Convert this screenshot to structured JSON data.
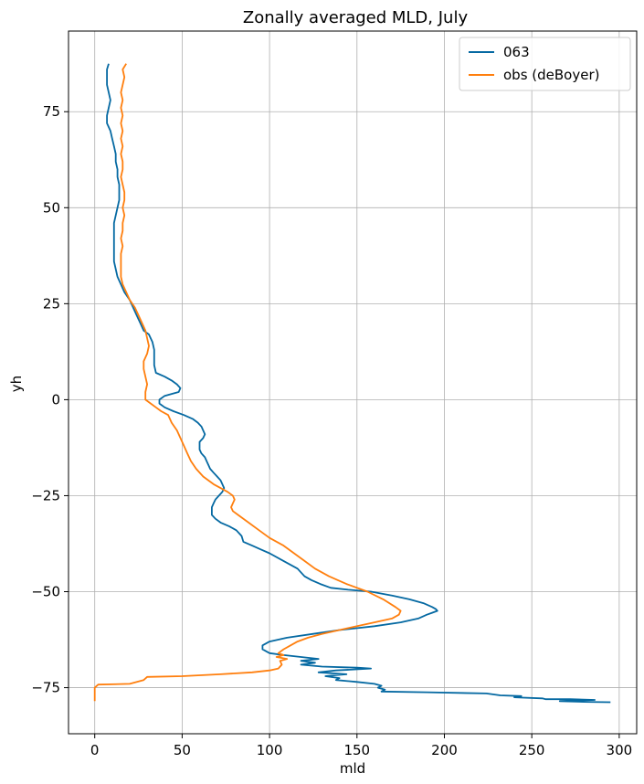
{
  "chart_data": {
    "type": "line",
    "title": "Zonally averaged MLD, July",
    "xlabel": "mld",
    "ylabel": "yh",
    "xlim": [
      -15,
      310
    ],
    "ylim": [
      -87,
      96
    ],
    "xticks": [
      0,
      50,
      100,
      150,
      200,
      250,
      300
    ],
    "yticks": [
      -75,
      -50,
      -25,
      0,
      25,
      50,
      75
    ],
    "grid": true,
    "legend_position": "top-right",
    "series": [
      {
        "name": "063",
        "color": "#0569a2",
        "points": [
          [
            8,
            87.5
          ],
          [
            7,
            86
          ],
          [
            7,
            84
          ],
          [
            7,
            82
          ],
          [
            8,
            80
          ],
          [
            9,
            78
          ],
          [
            8,
            76
          ],
          [
            7,
            74
          ],
          [
            7,
            72
          ],
          [
            9,
            70
          ],
          [
            10,
            68
          ],
          [
            11,
            66
          ],
          [
            12,
            64
          ],
          [
            12,
            62
          ],
          [
            13,
            60
          ],
          [
            13,
            58
          ],
          [
            14,
            56
          ],
          [
            14,
            54
          ],
          [
            14,
            52
          ],
          [
            13,
            50
          ],
          [
            12,
            48
          ],
          [
            11,
            46
          ],
          [
            11,
            44
          ],
          [
            11,
            42
          ],
          [
            11,
            40
          ],
          [
            11,
            38
          ],
          [
            11,
            36
          ],
          [
            12,
            34
          ],
          [
            13,
            32
          ],
          [
            15,
            30
          ],
          [
            17,
            28
          ],
          [
            20,
            26
          ],
          [
            22,
            24
          ],
          [
            24,
            22
          ],
          [
            26,
            20
          ],
          [
            28,
            18
          ],
          [
            31,
            17
          ],
          [
            33,
            15
          ],
          [
            34,
            13
          ],
          [
            34,
            11
          ],
          [
            34,
            9
          ],
          [
            35,
            7
          ],
          [
            40,
            6
          ],
          [
            44,
            5
          ],
          [
            47,
            4
          ],
          [
            49,
            3
          ],
          [
            48,
            2
          ],
          [
            44,
            1.5
          ],
          [
            40,
            1
          ],
          [
            37,
            0
          ],
          [
            37,
            -1
          ],
          [
            40,
            -2
          ],
          [
            45,
            -3
          ],
          [
            51,
            -4
          ],
          [
            56,
            -5
          ],
          [
            59,
            -6
          ],
          [
            61,
            -7
          ],
          [
            62,
            -8
          ],
          [
            63,
            -9
          ],
          [
            62,
            -10
          ],
          [
            60,
            -11
          ],
          [
            60,
            -12
          ],
          [
            60,
            -13
          ],
          [
            61,
            -14
          ],
          [
            63,
            -15
          ],
          [
            64,
            -16
          ],
          [
            65,
            -17
          ],
          [
            66,
            -18
          ],
          [
            68,
            -19
          ],
          [
            70,
            -20
          ],
          [
            72,
            -21
          ],
          [
            73,
            -22
          ],
          [
            74,
            -23
          ],
          [
            73,
            -24
          ],
          [
            71,
            -25
          ],
          [
            69,
            -26
          ],
          [
            68,
            -27
          ],
          [
            67,
            -28
          ],
          [
            67,
            -29
          ],
          [
            67,
            -30
          ],
          [
            69,
            -31
          ],
          [
            72,
            -32
          ],
          [
            77,
            -33
          ],
          [
            81,
            -34
          ],
          [
            83,
            -35
          ],
          [
            84,
            -35.5
          ],
          [
            85,
            -37
          ],
          [
            90,
            -38
          ],
          [
            95,
            -39
          ],
          [
            100,
            -40
          ],
          [
            108,
            -42
          ],
          [
            116,
            -44
          ],
          [
            120,
            -46
          ],
          [
            124,
            -47
          ],
          [
            129,
            -48
          ],
          [
            135,
            -49
          ],
          [
            145,
            -49.5
          ],
          [
            158,
            -50
          ],
          [
            170,
            -51
          ],
          [
            180,
            -52
          ],
          [
            188,
            -53
          ],
          [
            193,
            -54
          ],
          [
            195,
            -54.5
          ],
          [
            196,
            -55
          ],
          [
            193,
            -55.5
          ],
          [
            190,
            -56
          ],
          [
            185,
            -57
          ],
          [
            175,
            -58
          ],
          [
            160,
            -59
          ],
          [
            140,
            -60
          ],
          [
            125,
            -61
          ],
          [
            110,
            -62
          ],
          [
            100,
            -63
          ],
          [
            96,
            -64
          ],
          [
            96,
            -65
          ],
          [
            100,
            -66
          ],
          [
            108,
            -66.5
          ],
          [
            118,
            -67
          ],
          [
            128,
            -67.5
          ],
          [
            118,
            -68
          ],
          [
            126,
            -68.5
          ],
          [
            118,
            -69
          ],
          [
            130,
            -69.5
          ],
          [
            150,
            -69.8
          ],
          [
            158,
            -70
          ],
          [
            138,
            -70.5
          ],
          [
            128,
            -71
          ],
          [
            144,
            -71.5
          ],
          [
            132,
            -72
          ],
          [
            140,
            -72.5
          ],
          [
            138,
            -73
          ],
          [
            150,
            -73.5
          ],
          [
            160,
            -74
          ],
          [
            164,
            -74.5
          ],
          [
            162,
            -75
          ],
          [
            166,
            -75.5
          ],
          [
            164,
            -76
          ],
          [
            190,
            -76.2
          ],
          [
            224,
            -76.5
          ],
          [
            232,
            -77
          ],
          [
            244,
            -77.2
          ],
          [
            240,
            -77.5
          ],
          [
            256,
            -77.8
          ],
          [
            258,
            -78
          ],
          [
            272,
            -78
          ],
          [
            286,
            -78.2
          ],
          [
            266,
            -78.5
          ],
          [
            280,
            -78.7
          ],
          [
            295,
            -78.8
          ]
        ]
      },
      {
        "name": "obs (deBoyer)",
        "color": "#ff7f0e",
        "points": [
          [
            18,
            87.5
          ],
          [
            16,
            86
          ],
          [
            17,
            84
          ],
          [
            16,
            82
          ],
          [
            15,
            80
          ],
          [
            16,
            78
          ],
          [
            15,
            76
          ],
          [
            16,
            74
          ],
          [
            15,
            72
          ],
          [
            16,
            70
          ],
          [
            15,
            68
          ],
          [
            16,
            66
          ],
          [
            15,
            64
          ],
          [
            16,
            62
          ],
          [
            16,
            60
          ],
          [
            15,
            58
          ],
          [
            16,
            56
          ],
          [
            17,
            54
          ],
          [
            17,
            52
          ],
          [
            16,
            50
          ],
          [
            17,
            48
          ],
          [
            16,
            46
          ],
          [
            16,
            44
          ],
          [
            15,
            42
          ],
          [
            16,
            40
          ],
          [
            15,
            38
          ],
          [
            15,
            36
          ],
          [
            15,
            34
          ],
          [
            15,
            32
          ],
          [
            16,
            30
          ],
          [
            18,
            28
          ],
          [
            20,
            26
          ],
          [
            23,
            24
          ],
          [
            25,
            22
          ],
          [
            27,
            20
          ],
          [
            29,
            18
          ],
          [
            30,
            16
          ],
          [
            31,
            14
          ],
          [
            30,
            12
          ],
          [
            28,
            10
          ],
          [
            28,
            8
          ],
          [
            29,
            6
          ],
          [
            30,
            4
          ],
          [
            29,
            2
          ],
          [
            29,
            0
          ],
          [
            32,
            -1
          ],
          [
            35,
            -2
          ],
          [
            38,
            -3
          ],
          [
            42,
            -4
          ],
          [
            44,
            -6
          ],
          [
            47,
            -8
          ],
          [
            49,
            -10
          ],
          [
            51,
            -12
          ],
          [
            53,
            -14
          ],
          [
            55,
            -16
          ],
          [
            58,
            -18
          ],
          [
            62,
            -20
          ],
          [
            68,
            -22
          ],
          [
            76,
            -24
          ],
          [
            79,
            -25
          ],
          [
            80,
            -26
          ],
          [
            79,
            -27
          ],
          [
            78,
            -28
          ],
          [
            79,
            -29
          ],
          [
            82,
            -30
          ],
          [
            88,
            -32
          ],
          [
            94,
            -34
          ],
          [
            100,
            -36
          ],
          [
            108,
            -38
          ],
          [
            114,
            -40
          ],
          [
            120,
            -42
          ],
          [
            126,
            -44
          ],
          [
            134,
            -46
          ],
          [
            144,
            -48
          ],
          [
            156,
            -50
          ],
          [
            165,
            -52
          ],
          [
            172,
            -54
          ],
          [
            175,
            -55
          ],
          [
            174,
            -56
          ],
          [
            170,
            -57
          ],
          [
            160,
            -58
          ],
          [
            150,
            -59
          ],
          [
            140,
            -60
          ],
          [
            130,
            -61
          ],
          [
            122,
            -62
          ],
          [
            116,
            -63
          ],
          [
            112,
            -64
          ],
          [
            108,
            -65
          ],
          [
            105,
            -66
          ],
          [
            108,
            -66.5
          ],
          [
            104,
            -67
          ],
          [
            110,
            -67.5
          ],
          [
            106,
            -68
          ],
          [
            107,
            -69
          ],
          [
            105,
            -70
          ],
          [
            100,
            -70.5
          ],
          [
            90,
            -71
          ],
          [
            72,
            -71.5
          ],
          [
            50,
            -72
          ],
          [
            30,
            -72.2
          ],
          [
            28,
            -73
          ],
          [
            20,
            -74
          ],
          [
            2,
            -74.2
          ],
          [
            0,
            -75
          ],
          [
            0,
            -78.5
          ]
        ]
      }
    ]
  }
}
